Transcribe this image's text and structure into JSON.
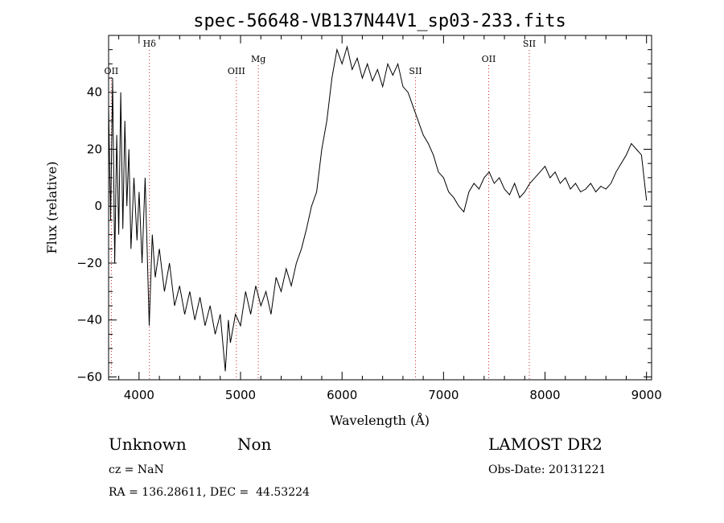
{
  "chart_data": {
    "type": "line",
    "title": "spec-56648-VB137N44V1_sp03-233.fits",
    "xlabel": "Wavelength (Å)",
    "ylabel": "Flux (relative)",
    "xlim": [
      3700,
      9050
    ],
    "ylim": [
      -61,
      60
    ],
    "x_ticks": [
      4000,
      5000,
      6000,
      7000,
      8000,
      9000
    ],
    "y_ticks": [
      -60,
      -40,
      -20,
      0,
      20,
      40
    ],
    "x_tick_labels": [
      "4000",
      "5000",
      "6000",
      "7000",
      "8000",
      "9000"
    ],
    "y_tick_labels": [
      "−60",
      "−40",
      "−20",
      "0",
      "20",
      "40"
    ],
    "series": [
      {
        "points": [
          [
            3700,
            35
          ],
          [
            3720,
            -5
          ],
          [
            3740,
            45
          ],
          [
            3760,
            -20
          ],
          [
            3780,
            25
          ],
          [
            3800,
            -10
          ],
          [
            3820,
            40
          ],
          [
            3840,
            -8
          ],
          [
            3860,
            30
          ],
          [
            3880,
            0
          ],
          [
            3900,
            20
          ],
          [
            3920,
            -15
          ],
          [
            3950,
            10
          ],
          [
            3980,
            -12
          ],
          [
            4000,
            5
          ],
          [
            4030,
            -20
          ],
          [
            4060,
            10
          ],
          [
            4080,
            -15
          ],
          [
            4100,
            -42
          ],
          [
            4130,
            -10
          ],
          [
            4160,
            -25
          ],
          [
            4200,
            -15
          ],
          [
            4250,
            -30
          ],
          [
            4300,
            -20
          ],
          [
            4350,
            -35
          ],
          [
            4400,
            -28
          ],
          [
            4450,
            -38
          ],
          [
            4500,
            -30
          ],
          [
            4550,
            -40
          ],
          [
            4600,
            -32
          ],
          [
            4650,
            -42
          ],
          [
            4700,
            -35
          ],
          [
            4750,
            -45
          ],
          [
            4800,
            -38
          ],
          [
            4850,
            -58
          ],
          [
            4880,
            -40
          ],
          [
            4900,
            -48
          ],
          [
            4950,
            -38
          ],
          [
            5000,
            -42
          ],
          [
            5050,
            -30
          ],
          [
            5100,
            -38
          ],
          [
            5150,
            -28
          ],
          [
            5200,
            -35
          ],
          [
            5250,
            -30
          ],
          [
            5300,
            -38
          ],
          [
            5350,
            -25
          ],
          [
            5400,
            -30
          ],
          [
            5450,
            -22
          ],
          [
            5500,
            -28
          ],
          [
            5550,
            -20
          ],
          [
            5600,
            -15
          ],
          [
            5650,
            -8
          ],
          [
            5700,
            0
          ],
          [
            5750,
            5
          ],
          [
            5800,
            20
          ],
          [
            5850,
            30
          ],
          [
            5900,
            45
          ],
          [
            5950,
            55
          ],
          [
            6000,
            50
          ],
          [
            6050,
            56
          ],
          [
            6100,
            48
          ],
          [
            6150,
            52
          ],
          [
            6200,
            45
          ],
          [
            6250,
            50
          ],
          [
            6300,
            44
          ],
          [
            6350,
            48
          ],
          [
            6400,
            42
          ],
          [
            6450,
            50
          ],
          [
            6500,
            46
          ],
          [
            6550,
            50
          ],
          [
            6600,
            42
          ],
          [
            6650,
            40
          ],
          [
            6700,
            35
          ],
          [
            6750,
            30
          ],
          [
            6800,
            25
          ],
          [
            6850,
            22
          ],
          [
            6900,
            18
          ],
          [
            6950,
            12
          ],
          [
            7000,
            10
          ],
          [
            7050,
            5
          ],
          [
            7100,
            3
          ],
          [
            7150,
            0
          ],
          [
            7200,
            -2
          ],
          [
            7250,
            5
          ],
          [
            7300,
            8
          ],
          [
            7350,
            6
          ],
          [
            7400,
            10
          ],
          [
            7450,
            12
          ],
          [
            7500,
            8
          ],
          [
            7550,
            10
          ],
          [
            7600,
            6
          ],
          [
            7650,
            4
          ],
          [
            7700,
            8
          ],
          [
            7750,
            3
          ],
          [
            7800,
            5
          ],
          [
            7850,
            8
          ],
          [
            7900,
            10
          ],
          [
            7950,
            12
          ],
          [
            8000,
            14
          ],
          [
            8050,
            10
          ],
          [
            8100,
            12
          ],
          [
            8150,
            8
          ],
          [
            8200,
            10
          ],
          [
            8250,
            6
          ],
          [
            8300,
            8
          ],
          [
            8350,
            5
          ],
          [
            8400,
            6
          ],
          [
            8450,
            8
          ],
          [
            8500,
            5
          ],
          [
            8550,
            7
          ],
          [
            8600,
            6
          ],
          [
            8650,
            8
          ],
          [
            8700,
            12
          ],
          [
            8750,
            15
          ],
          [
            8800,
            18
          ],
          [
            8850,
            22
          ],
          [
            8900,
            20
          ],
          [
            8950,
            18
          ],
          [
            9000,
            2
          ]
        ]
      }
    ],
    "lines": [
      {
        "label": "OII",
        "x": 3727
      },
      {
        "label": "Hδ",
        "x": 4102
      },
      {
        "label": "OIII",
        "x": 4959
      },
      {
        "label": "Mg",
        "x": 5175
      },
      {
        "label": "SII",
        "x": 6724
      },
      {
        "label": "OII",
        "x": 7445
      },
      {
        "label": "SII",
        "x": 7845
      }
    ],
    "grid": false,
    "line_color": "#000000",
    "marker_color": "#cc2222"
  },
  "info": {
    "class": "Unknown",
    "subclass": "Non",
    "survey": "LAMOST DR2",
    "cz": "cz = NaN",
    "obs_date": "Obs-Date: 20131221",
    "coords": "RA = 136.28611, DEC =  44.53224"
  }
}
